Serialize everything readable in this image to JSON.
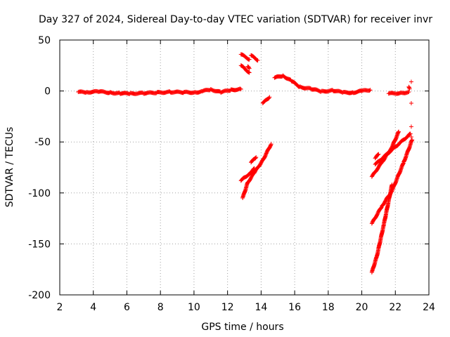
{
  "chart_data": {
    "type": "scatter",
    "title": "Day 327 of 2024, Sidereal Day-to-day VTEC variation (SDTVAR) for receiver invr",
    "xlabel": "GPS time / hours",
    "ylabel": "SDTVAR / TECUs",
    "xlim": [
      2,
      24
    ],
    "ylim": [
      -200,
      50
    ],
    "xticks": [
      2,
      4,
      6,
      8,
      10,
      12,
      14,
      16,
      18,
      20,
      22,
      24
    ],
    "yticks": [
      50,
      0,
      -50,
      -100,
      -150,
      -200
    ],
    "grid": true,
    "legend": "none",
    "marker": "plus",
    "color": "#ff0000",
    "series": [
      {
        "segments": [
          [
            [
              3.1,
              -1
            ],
            [
              3.6,
              -1.2
            ],
            [
              4.3,
              -0.5
            ],
            [
              5.0,
              -1.6
            ],
            [
              5.6,
              -2.3
            ],
            [
              6.2,
              -2.5
            ],
            [
              7.0,
              -2.1
            ],
            [
              7.8,
              -1.6
            ],
            [
              8.6,
              -1.0
            ],
            [
              9.4,
              -1.3
            ],
            [
              10.1,
              -1.4
            ],
            [
              10.5,
              -0.2
            ],
            [
              11.0,
              1.5
            ],
            [
              11.6,
              -1.2
            ],
            [
              12.2,
              1.0
            ],
            [
              12.8,
              1.8
            ]
          ],
          [
            [
              12.8,
              36
            ],
            [
              13.3,
              31
            ]
          ],
          [
            [
              13.4,
              35
            ],
            [
              13.8,
              30
            ]
          ],
          [
            [
              12.8,
              25
            ],
            [
              13.3,
              18
            ]
          ],
          [
            [
              13.2,
              24
            ],
            [
              13.3,
              22
            ]
          ],
          [
            [
              14.1,
              -12
            ],
            [
              14.5,
              -6
            ]
          ],
          [
            [
              14.8,
              13
            ],
            [
              15.3,
              15
            ],
            [
              15.8,
              10
            ],
            [
              16.3,
              4
            ],
            [
              17.0,
              2
            ],
            [
              17.6,
              -0.5
            ],
            [
              18.3,
              0.5
            ],
            [
              18.9,
              -1.5
            ],
            [
              19.5,
              -1.5
            ],
            [
              20.0,
              0
            ],
            [
              20.5,
              1
            ]
          ],
          [
            [
              21.6,
              -2.5
            ],
            [
              22.4,
              -2
            ],
            [
              22.8,
              -1
            ]
          ],
          [
            [
              22.8,
              4
            ],
            [
              22.85,
              2
            ]
          ],
          [
            [
              12.8,
              -88
            ],
            [
              13.0,
              -85
            ],
            [
              13.4,
              -80
            ],
            [
              13.6,
              -76
            ]
          ],
          [
            [
              12.9,
              -105
            ],
            [
              13.2,
              -90
            ],
            [
              13.6,
              -80
            ],
            [
              14.1,
              -68
            ],
            [
              14.6,
              -52
            ]
          ],
          [
            [
              13.4,
              -70
            ],
            [
              13.7,
              -65
            ]
          ],
          [
            [
              20.6,
              -84
            ],
            [
              21.2,
              -70
            ],
            [
              21.8,
              -55
            ],
            [
              22.2,
              -40
            ]
          ],
          [
            [
              20.8,
              -66
            ],
            [
              21.0,
              -62
            ]
          ],
          [
            [
              20.6,
              -130
            ],
            [
              21.2,
              -113
            ],
            [
              21.8,
              -98
            ],
            [
              22.5,
              -70
            ],
            [
              23.0,
              -48
            ]
          ],
          [
            [
              20.6,
              -178
            ],
            [
              20.9,
              -162
            ],
            [
              21.3,
              -132
            ],
            [
              21.8,
              -92
            ]
          ],
          [
            [
              20.8,
              -72
            ],
            [
              21.5,
              -62
            ],
            [
              22.2,
              -52
            ],
            [
              22.9,
              -42
            ]
          ]
        ],
        "isolated": [
          [
            22.95,
            9
          ],
          [
            22.95,
            -12
          ],
          [
            22.95,
            -35
          ],
          [
            22.95,
            -45
          ]
        ]
      }
    ]
  }
}
